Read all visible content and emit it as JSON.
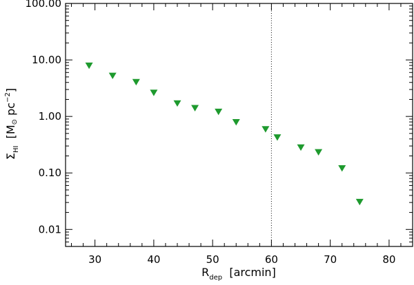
{
  "chart_data": {
    "type": "scatter",
    "marker": "triangle-down",
    "marker_color": "#1e9a2e",
    "xlabel": {
      "main": "R",
      "sub": "dep",
      "unit": "[arcmin]"
    },
    "ylabel": {
      "main": "Σ",
      "sub": "HI",
      "unit_open": "[M",
      "unit_sym": "⊙",
      "unit_mid": " pc",
      "unit_sup": "−2",
      "unit_close": "]"
    },
    "xlim": [
      25,
      84
    ],
    "ylim": [
      0.005,
      100
    ],
    "yscale": "log",
    "x_ticks": [
      30,
      40,
      50,
      60,
      70,
      80
    ],
    "x_tick_labels": [
      "30",
      "40",
      "50",
      "60",
      "70",
      "80"
    ],
    "y_ticks": [
      0.01,
      0.1,
      1,
      10,
      100
    ],
    "y_tick_labels": [
      "0.01",
      "0.10",
      "1.00",
      "10.00",
      "100.00"
    ],
    "vline": {
      "x": 60,
      "style": "dotted"
    },
    "grid": false,
    "points": [
      {
        "x": 29,
        "y": 8.0
      },
      {
        "x": 33,
        "y": 5.3
      },
      {
        "x": 37,
        "y": 4.1
      },
      {
        "x": 40,
        "y": 2.65
      },
      {
        "x": 44,
        "y": 1.72
      },
      {
        "x": 47,
        "y": 1.42
      },
      {
        "x": 51,
        "y": 1.22
      },
      {
        "x": 54,
        "y": 0.8
      },
      {
        "x": 59,
        "y": 0.6
      },
      {
        "x": 61,
        "y": 0.43
      },
      {
        "x": 65,
        "y": 0.285
      },
      {
        "x": 68,
        "y": 0.235
      },
      {
        "x": 72,
        "y": 0.122
      },
      {
        "x": 75,
        "y": 0.031
      }
    ]
  }
}
